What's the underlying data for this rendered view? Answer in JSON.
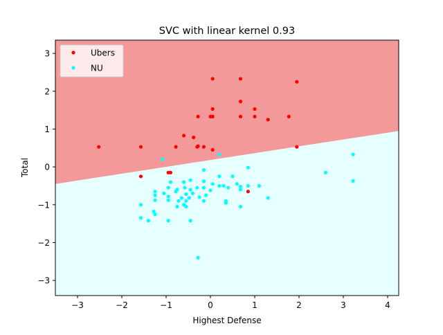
{
  "chart_data": {
    "type": "scatter",
    "title": "SVC with linear kernel 0.93",
    "xlabel": "Highest Defense",
    "ylabel": "Total",
    "xlim": [
      -3.5,
      4.25
    ],
    "ylim": [
      -3.4,
      3.35
    ],
    "x_ticks": [
      -3,
      -2,
      -1,
      0,
      1,
      2,
      3,
      4
    ],
    "y_ticks": [
      -3,
      -2,
      -1,
      0,
      1,
      2,
      3
    ],
    "x_tick_labels": [
      "−3",
      "−2",
      "−1",
      "0",
      "1",
      "2",
      "3",
      "4"
    ],
    "y_tick_labels": [
      "−3",
      "−2",
      "−1",
      "0",
      "1",
      "2",
      "3"
    ],
    "grid": false,
    "legend_position": "top-left",
    "decision_boundary": {
      "x": [
        -3.5,
        4.25
      ],
      "y": [
        -0.45,
        0.95
      ]
    },
    "regions": [
      {
        "class": "Ubers",
        "side": "above",
        "color": "#f49999"
      },
      {
        "class": "NU",
        "side": "below",
        "color": "#e6ffff"
      }
    ],
    "series": [
      {
        "name": "Ubers",
        "color": "#ff0000",
        "points": [
          [
            0.05,
            2.33
          ],
          [
            0.68,
            2.33
          ],
          [
            1.95,
            2.25
          ],
          [
            0.68,
            1.73
          ],
          [
            0.05,
            1.53
          ],
          [
            1.0,
            1.53
          ],
          [
            -0.28,
            1.33
          ],
          [
            0.0,
            1.33
          ],
          [
            0.05,
            1.33
          ],
          [
            0.68,
            1.33
          ],
          [
            1.0,
            1.33
          ],
          [
            1.3,
            1.25
          ],
          [
            1.77,
            1.33
          ],
          [
            -0.6,
            0.83
          ],
          [
            -0.38,
            0.78
          ],
          [
            -0.28,
            0.55
          ],
          [
            -0.3,
            0.53
          ],
          [
            -0.15,
            0.53
          ],
          [
            -0.78,
            0.53
          ],
          [
            0.05,
            0.45
          ],
          [
            -2.52,
            0.53
          ],
          [
            -1.57,
            0.53
          ],
          [
            1.95,
            0.53
          ],
          [
            -1.57,
            -0.25
          ],
          [
            -0.95,
            -0.15
          ],
          [
            -0.9,
            -0.15
          ],
          [
            0.85,
            -0.65
          ]
        ]
      },
      {
        "name": "NU",
        "color": "#00ffff",
        "points": [
          [
            3.22,
            0.33
          ],
          [
            2.6,
            -0.15
          ],
          [
            3.22,
            -0.37
          ],
          [
            -1.08,
            0.2
          ],
          [
            0.2,
            0.33
          ],
          [
            0.85,
            -0.02
          ],
          [
            -0.15,
            -0.08
          ],
          [
            0.5,
            -0.25
          ],
          [
            0.2,
            -0.25
          ],
          [
            -0.9,
            -0.4
          ],
          [
            -0.6,
            -0.4
          ],
          [
            -0.45,
            -0.35
          ],
          [
            -0.15,
            -0.38
          ],
          [
            0.05,
            -0.45
          ],
          [
            0.2,
            -0.5
          ],
          [
            0.3,
            -0.5
          ],
          [
            0.6,
            -0.45
          ],
          [
            0.68,
            -0.52
          ],
          [
            0.85,
            -0.5
          ],
          [
            1.1,
            -0.5
          ],
          [
            -0.95,
            -0.55
          ],
          [
            -0.75,
            -0.6
          ],
          [
            -0.58,
            -0.55
          ],
          [
            -0.45,
            -0.6
          ],
          [
            -0.3,
            -0.55
          ],
          [
            -0.15,
            -0.55
          ],
          [
            0.0,
            -0.62
          ],
          [
            0.4,
            -0.55
          ],
          [
            0.68,
            -0.6
          ],
          [
            -1.25,
            -0.65
          ],
          [
            -1.05,
            -0.7
          ],
          [
            -0.78,
            -0.65
          ],
          [
            -0.55,
            -0.72
          ],
          [
            -0.4,
            -0.7
          ],
          [
            -0.25,
            -0.8
          ],
          [
            -0.1,
            -0.75
          ],
          [
            -1.25,
            -0.75
          ],
          [
            -0.95,
            -0.78
          ],
          [
            -0.65,
            -0.82
          ],
          [
            -0.48,
            -0.82
          ],
          [
            -1.25,
            -0.88
          ],
          [
            -0.95,
            -0.88
          ],
          [
            -0.72,
            -0.9
          ],
          [
            -0.55,
            -0.9
          ],
          [
            -0.15,
            -0.9
          ],
          [
            0.35,
            -0.9
          ],
          [
            -1.57,
            -1.0
          ],
          [
            -0.75,
            -1.05
          ],
          [
            -0.6,
            -1.0
          ],
          [
            -0.55,
            -1.05
          ],
          [
            0.35,
            -0.95
          ],
          [
            0.68,
            -1.05
          ],
          [
            1.3,
            -0.82
          ],
          [
            -1.28,
            -1.18
          ],
          [
            -1.25,
            -1.25
          ],
          [
            -1.57,
            -1.35
          ],
          [
            -1.4,
            -1.42
          ],
          [
            -0.95,
            -1.42
          ],
          [
            -0.45,
            -1.42
          ],
          [
            -0.28,
            -2.4
          ]
        ]
      }
    ]
  }
}
